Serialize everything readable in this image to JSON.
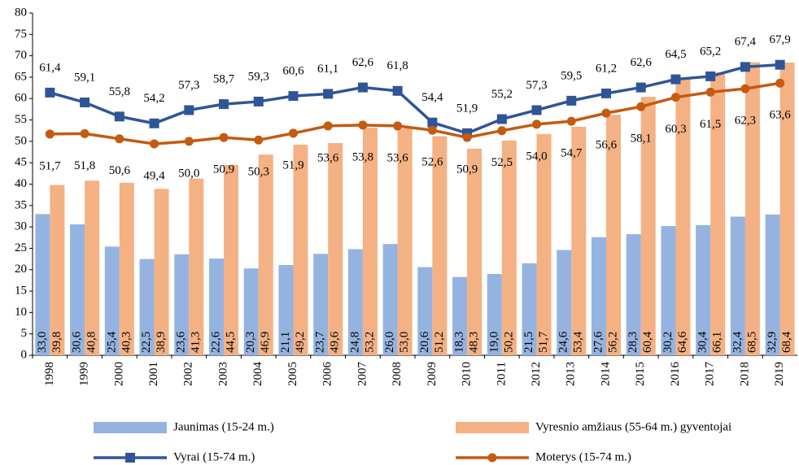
{
  "chart_data": {
    "type": "bar",
    "categories": [
      "1998",
      "1999",
      "2000",
      "2001",
      "2002",
      "2003",
      "2004",
      "2005",
      "2006",
      "2007",
      "2008",
      "2009",
      "2010",
      "2011",
      "2012",
      "2013",
      "2014",
      "2015",
      "2016",
      "2017",
      "2018",
      "2019"
    ],
    "ylim": [
      0,
      80
    ],
    "yticks": [
      0,
      5,
      10,
      15,
      20,
      25,
      30,
      35,
      40,
      45,
      50,
      55,
      60,
      65,
      70,
      75,
      80
    ],
    "grid": false,
    "legend": "bottom",
    "series": [
      {
        "name": "Jaunimas (15-24 m.)",
        "type": "bar",
        "color": "#95b3e0",
        "values": [
          33.0,
          30.6,
          25.4,
          22.5,
          23.6,
          22.6,
          20.3,
          21.1,
          23.7,
          24.8,
          26.0,
          20.6,
          18.3,
          19.0,
          21.5,
          24.6,
          27.6,
          28.3,
          30.2,
          30.4,
          32.4,
          32.9
        ],
        "value_labels": [
          "33,0",
          "30,6",
          "25,4",
          "22,5",
          "23,6",
          "22,6",
          "20,3",
          "21,1",
          "23,7",
          "24,8",
          "26,0",
          "20,6",
          "18,3",
          "19,0",
          "21,5",
          "24,6",
          "27,6",
          "28,3",
          "30,2",
          "30,4",
          "32,4",
          "32,9"
        ]
      },
      {
        "name": "Vyresnio amžiaus (55-64 m.) gyventojai",
        "type": "bar",
        "color": "#f4b183",
        "values": [
          39.8,
          40.8,
          40.3,
          38.9,
          41.3,
          44.5,
          46.9,
          49.2,
          49.6,
          53.2,
          53.0,
          51.2,
          48.3,
          50.2,
          51.7,
          53.4,
          56.2,
          60.4,
          64.6,
          66.1,
          68.5,
          68.4
        ],
        "value_labels": [
          "39,8",
          "40,8",
          "40,3",
          "38,9",
          "41,3",
          "44,5",
          "46,9",
          "49,2",
          "49,6",
          "53,2",
          "53,0",
          "51,2",
          "48,3",
          "50,2",
          "51,7",
          "53,4",
          "56,2",
          "60,4",
          "64,6",
          "66,1",
          "68,5",
          "68,4"
        ]
      },
      {
        "name": "Vyrai (15-74 m.)",
        "type": "line",
        "marker": "square",
        "color": "#2f5597",
        "values": [
          61.4,
          59.1,
          55.8,
          54.2,
          57.3,
          58.7,
          59.3,
          60.6,
          61.1,
          62.6,
          61.8,
          54.4,
          51.9,
          55.2,
          57.3,
          59.5,
          61.2,
          62.6,
          64.5,
          65.2,
          67.4,
          67.9
        ],
        "value_labels": [
          "61,4",
          "59,1",
          "55,8",
          "54,2",
          "57,3",
          "58,7",
          "59,3",
          "60,6",
          "61,1",
          "62,6",
          "61,8",
          "54,4",
          "51,9",
          "55,2",
          "57,3",
          "59,5",
          "61,2",
          "62,6",
          "64,5",
          "65,2",
          "67,4",
          "67,9"
        ]
      },
      {
        "name": "Moterys (15-74 m.)",
        "type": "line",
        "marker": "circle",
        "color": "#c55a11",
        "values": [
          51.7,
          51.8,
          50.6,
          49.4,
          50.0,
          50.9,
          50.3,
          51.9,
          53.6,
          53.8,
          53.6,
          52.6,
          50.9,
          52.5,
          54.0,
          54.7,
          56.6,
          58.1,
          60.3,
          61.5,
          62.3,
          63.6
        ],
        "value_labels": [
          "51,7",
          "51,8",
          "50,6",
          "49,4",
          "50,0",
          "50,9",
          "50,3",
          "51,9",
          "53,6",
          "53,8",
          "53,6",
          "52,6",
          "50,9",
          "52,5",
          "54,0",
          "54,7",
          "56,6",
          "58,1",
          "60,3",
          "61,5",
          "62,3",
          "63,6"
        ]
      }
    ]
  }
}
